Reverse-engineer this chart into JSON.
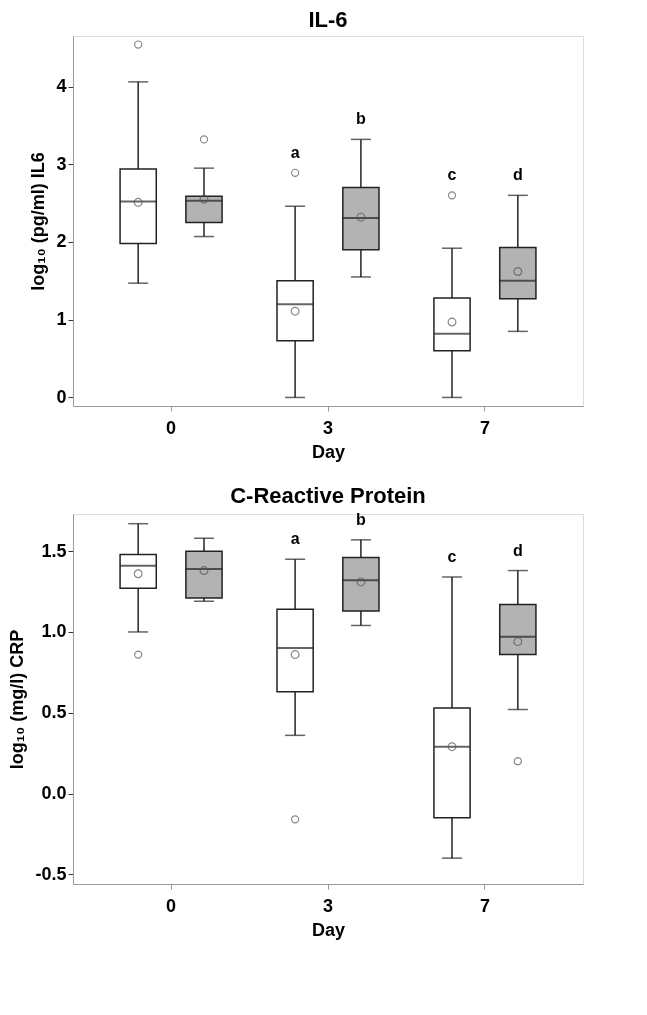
{
  "chart_data": [
    {
      "type": "box",
      "title": "IL-6",
      "xlabel": "Day",
      "ylabel": "log₁₀ (pg/ml) IL6",
      "categories": [
        "0",
        "3",
        "7"
      ],
      "ylim": [
        -0.11,
        4.65
      ],
      "yticks": [
        0,
        1,
        2,
        3,
        4
      ],
      "grid": false,
      "series": [
        {
          "color": "#ffffff",
          "boxes": [
            {
              "low": 1.47,
              "q1": 1.98,
              "median": 2.52,
              "q3": 2.94,
              "high": 4.06,
              "mean": 2.51,
              "outliers": [
                4.54
              ]
            },
            {
              "low": 0,
              "q1": 0.73,
              "median": 1.2,
              "q3": 1.5,
              "high": 2.46,
              "mean": 1.11,
              "outliers": [
                2.89
              ]
            },
            {
              "low": 0,
              "q1": 0.6,
              "median": 0.82,
              "q3": 1.28,
              "high": 1.92,
              "mean": 0.97,
              "outliers": [
                2.6
              ]
            }
          ]
        },
        {
          "color": "#b3b3b3",
          "boxes": [
            {
              "low": 2.07,
              "q1": 2.25,
              "median": 2.53,
              "q3": 2.59,
              "high": 2.95,
              "mean": 2.55,
              "outliers": [
                3.32
              ]
            },
            {
              "low": 1.55,
              "q1": 1.9,
              "median": 2.31,
              "q3": 2.7,
              "high": 3.32,
              "mean": 2.32
            },
            {
              "low": 0.85,
              "q1": 1.27,
              "median": 1.5,
              "q3": 1.93,
              "high": 2.6,
              "mean": 1.62
            }
          ]
        }
      ],
      "annotations": [
        "a",
        "b",
        "c",
        "d"
      ]
    },
    {
      "type": "box",
      "title": "C-Reactive Protein",
      "xlabel": "Day",
      "ylabel": "log₁₀ (mg/l) CRP",
      "categories": [
        "0",
        "3",
        "7"
      ],
      "ylim": [
        -0.56,
        1.73
      ],
      "yticks": [
        -0.5,
        {
          "value": 0,
          "label": "0.0"
        },
        0.5,
        {
          "value": 1,
          "label": "1.0"
        },
        1.5
      ],
      "grid": false,
      "series": [
        {
          "color": "#ffffff",
          "boxes": [
            {
              "low": 1.0,
              "q1": 1.27,
              "median": 1.41,
              "q3": 1.48,
              "high": 1.67,
              "mean": 1.36,
              "outliers": [
                0.86
              ]
            },
            {
              "low": 0.36,
              "q1": 0.63,
              "median": 0.9,
              "q3": 1.14,
              "high": 1.45,
              "mean": 0.86,
              "outliers": [
                -0.16
              ]
            },
            {
              "low": -0.4,
              "q1": -0.15,
              "median": 0.29,
              "q3": 0.53,
              "high": 1.34,
              "mean": 0.29
            }
          ]
        },
        {
          "color": "#b3b3b3",
          "boxes": [
            {
              "low": 1.19,
              "q1": 1.21,
              "median": 1.39,
              "q3": 1.5,
              "high": 1.58,
              "mean": 1.38
            },
            {
              "low": 1.04,
              "q1": 1.13,
              "median": 1.32,
              "q3": 1.46,
              "high": 1.57,
              "mean": 1.31
            },
            {
              "low": 0.52,
              "q1": 0.86,
              "median": 0.97,
              "q3": 1.17,
              "high": 1.38,
              "mean": 0.94,
              "outliers": [
                0.2
              ]
            }
          ]
        }
      ],
      "annotations": [
        "a",
        "b",
        "c",
        "d"
      ]
    }
  ]
}
